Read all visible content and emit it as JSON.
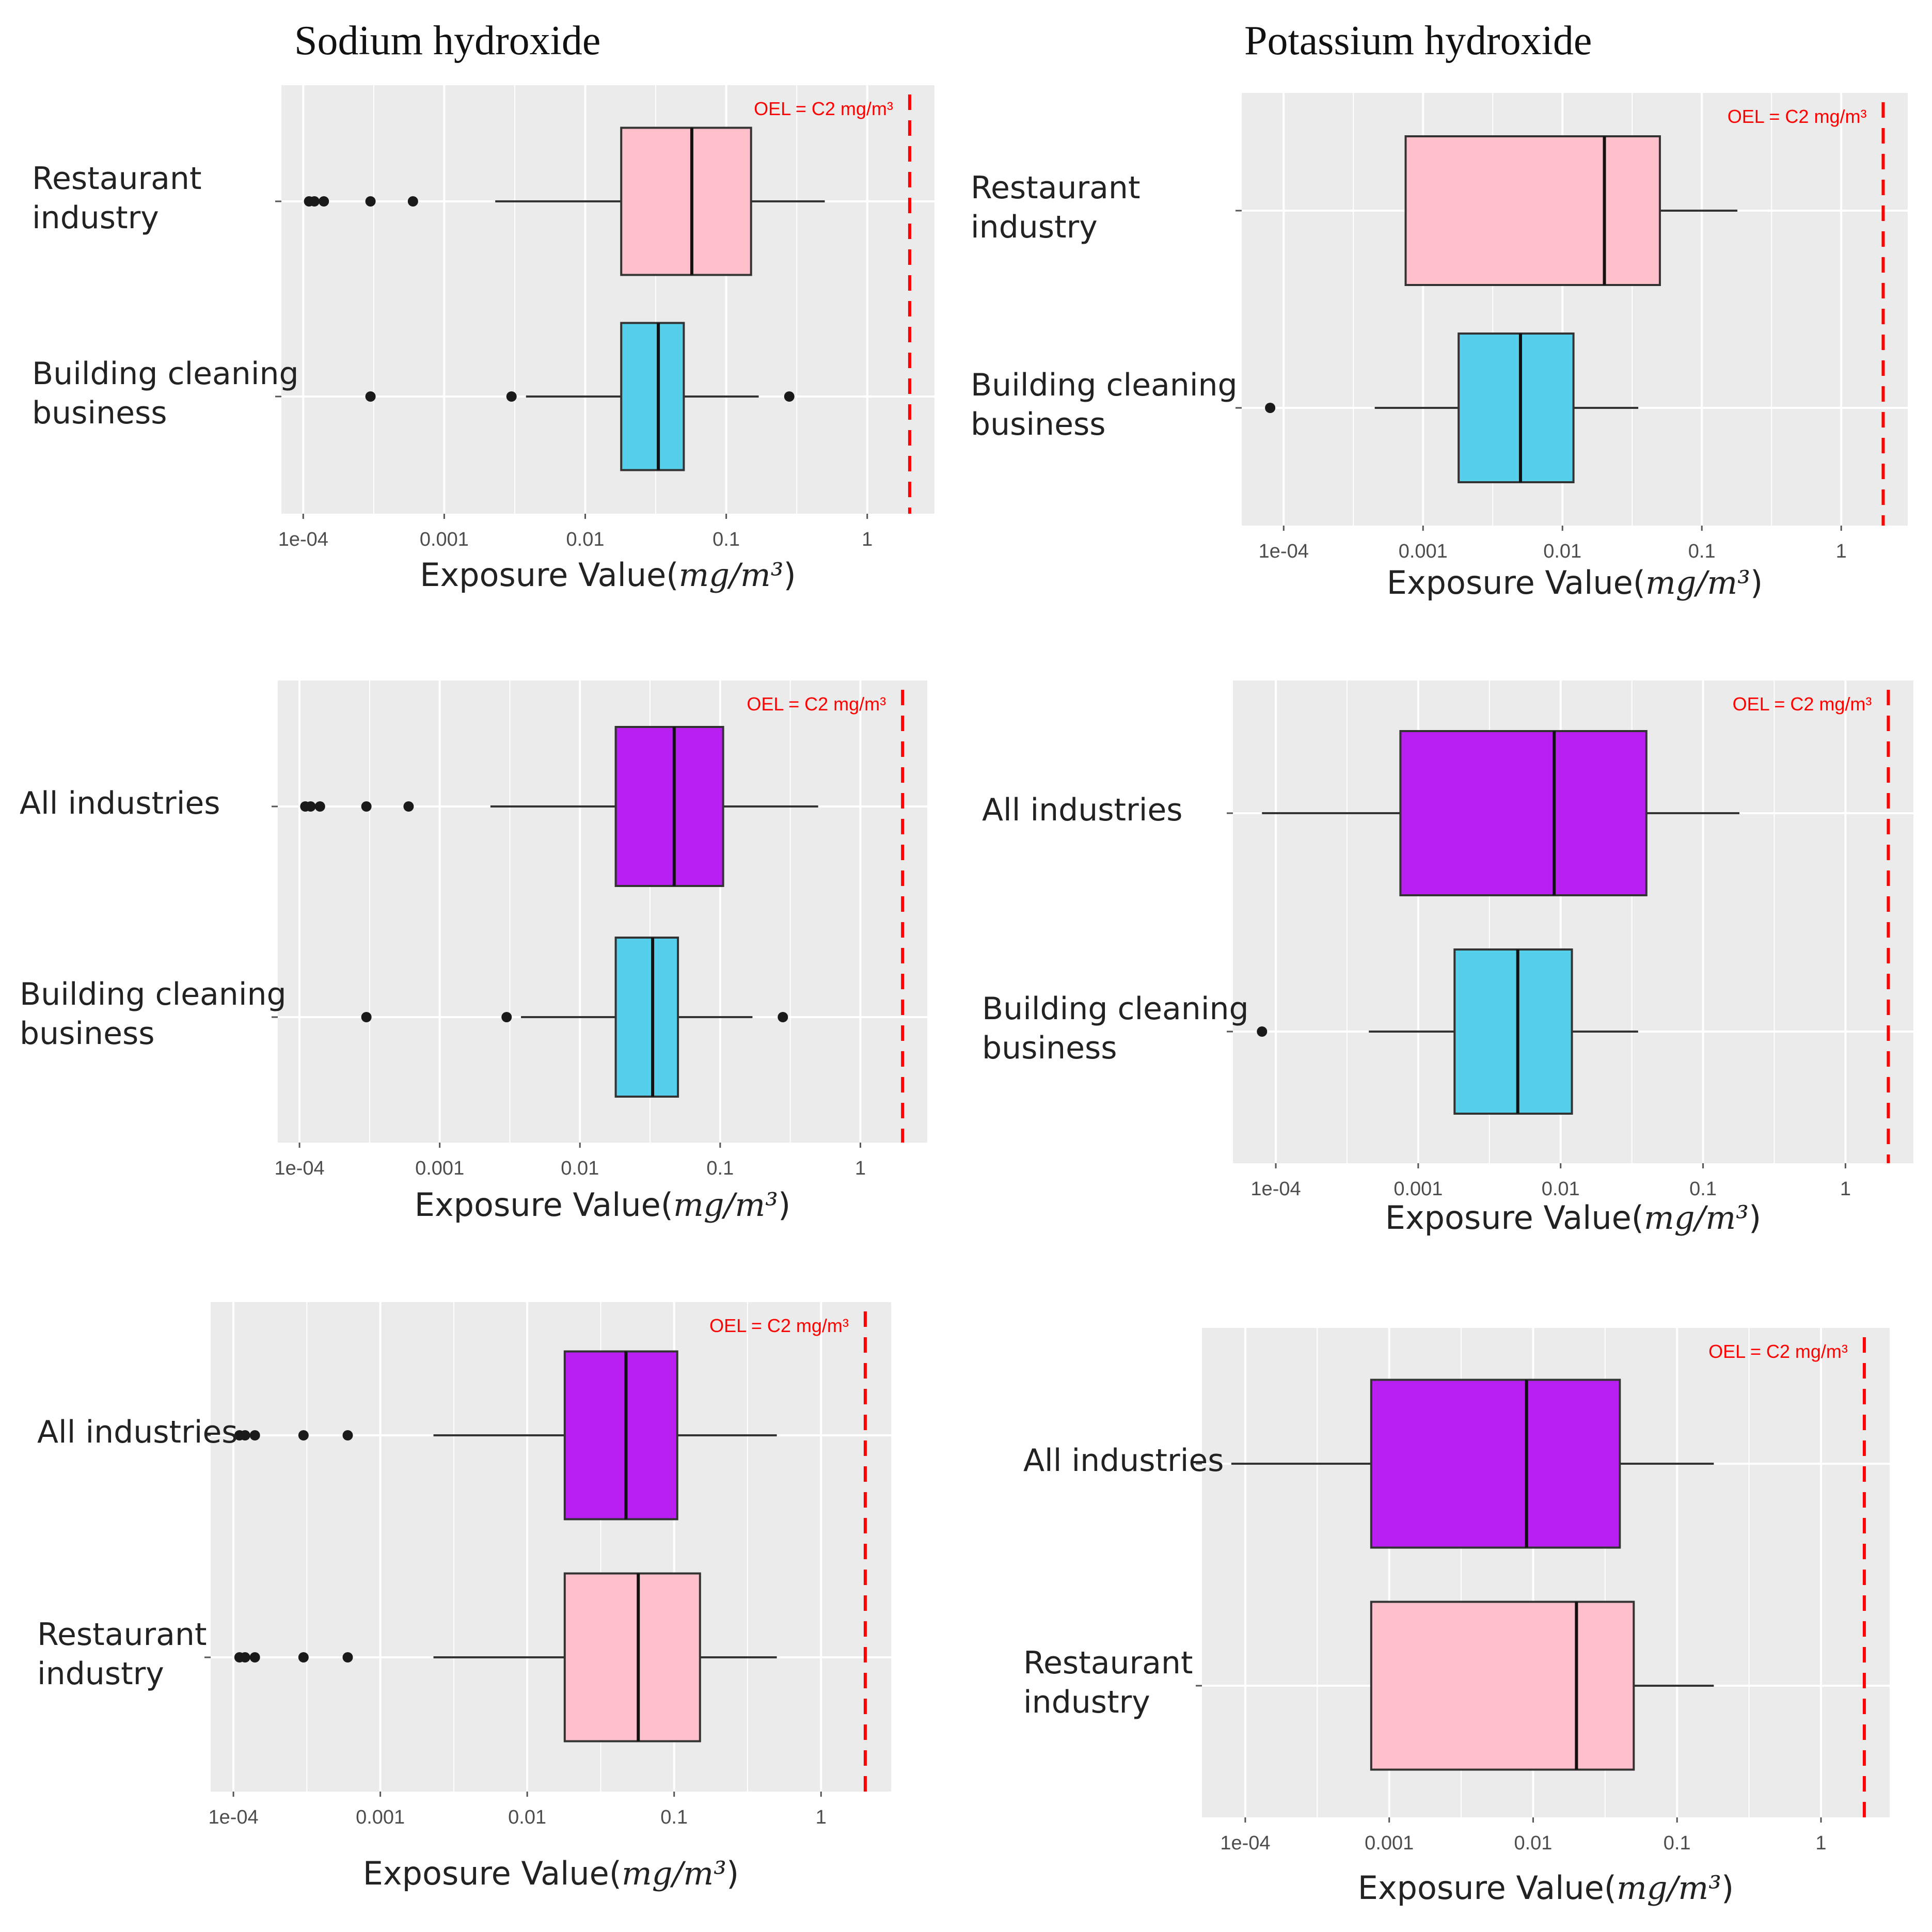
{
  "figure": {
    "column_titles": [
      "Sodium hydroxide",
      "Potassium hydroxide"
    ],
    "colors": {
      "panel_bg": "#ebebeb",
      "grid": "#ffffff",
      "box_outline": "#333333",
      "points": "#1a1a1a",
      "oel_line": "#ff0000",
      "Restaurant industry": "#ffc0cb",
      "Building cleaning business": "#56cfea",
      "All industries": "#b81ff0"
    }
  },
  "chart_data": [
    {
      "type": "boxplot",
      "title": "Sodium hydroxide",
      "xlabel": "Exposure Value(mg/m³)",
      "xscale": "log10",
      "xlim": [
        7e-05,
        3
      ],
      "xticks": [
        0.0001,
        0.001,
        0.01,
        0.1,
        1
      ],
      "xtick_labels": [
        "1e-04",
        "0.001",
        "0.01",
        "0.1",
        "1"
      ],
      "reference_line": {
        "value": 2,
        "label": "OEL = C2 mg/m³"
      },
      "groups": [
        {
          "label": "Restaurant industry",
          "color_key": "Restaurant industry",
          "whisker_low": 0.0023,
          "q1": 0.018,
          "median": 0.057,
          "q3": 0.15,
          "whisker_high": 0.5,
          "outliers": [
            0.00011,
            0.00012,
            0.00014,
            0.0003,
            0.0006
          ]
        },
        {
          "label": "Building cleaning business",
          "color_key": "Building cleaning business",
          "whisker_low": 0.0038,
          "q1": 0.018,
          "median": 0.033,
          "q3": 0.05,
          "whisker_high": 0.17,
          "outliers": [
            0.0003,
            0.003,
            0.28
          ]
        }
      ]
    },
    {
      "type": "boxplot",
      "title": "Potassium hydroxide",
      "xlabel": "Exposure Value(mg/m³)",
      "xscale": "log10",
      "xlim": [
        5e-05,
        3
      ],
      "xticks": [
        0.0001,
        0.001,
        0.01,
        0.1,
        1
      ],
      "xtick_labels": [
        "1e-04",
        "0.001",
        "0.01",
        "0.1",
        "1"
      ],
      "reference_line": {
        "value": 2,
        "label": "OEL = C2 mg/m³"
      },
      "groups": [
        {
          "label": "Restaurant industry",
          "color_key": "Restaurant industry",
          "whisker_low": 0.00075,
          "q1": 0.00075,
          "median": 0.02,
          "q3": 0.05,
          "whisker_high": 0.18,
          "outliers": []
        },
        {
          "label": "Building cleaning business",
          "color_key": "Building cleaning business",
          "whisker_low": 0.00045,
          "q1": 0.0018,
          "median": 0.005,
          "q3": 0.012,
          "whisker_high": 0.035,
          "outliers": [
            8e-05
          ]
        }
      ]
    },
    {
      "type": "boxplot",
      "title": "",
      "xlabel": "Exposure Value(mg/m³)",
      "xscale": "log10",
      "xlim": [
        7e-05,
        3
      ],
      "xticks": [
        0.0001,
        0.001,
        0.01,
        0.1,
        1
      ],
      "xtick_labels": [
        "1e-04",
        "0.001",
        "0.01",
        "0.1",
        "1"
      ],
      "reference_line": {
        "value": 2,
        "label": "OEL = C2 mg/m³"
      },
      "groups": [
        {
          "label": "All industries",
          "color_key": "All industries",
          "whisker_low": 0.0023,
          "q1": 0.018,
          "median": 0.047,
          "q3": 0.105,
          "whisker_high": 0.5,
          "outliers": [
            0.00011,
            0.00012,
            0.00014,
            0.0003,
            0.0006
          ]
        },
        {
          "label": "Building cleaning business",
          "color_key": "Building cleaning business",
          "whisker_low": 0.0038,
          "q1": 0.018,
          "median": 0.033,
          "q3": 0.05,
          "whisker_high": 0.17,
          "outliers": [
            0.0003,
            0.003,
            0.28
          ]
        }
      ]
    },
    {
      "type": "boxplot",
      "title": "",
      "xlabel": "Exposure Value(mg/m³)",
      "xscale": "log10",
      "xlim": [
        5e-05,
        3
      ],
      "xticks": [
        0.0001,
        0.001,
        0.01,
        0.1,
        1
      ],
      "xtick_labels": [
        "1e-04",
        "0.001",
        "0.01",
        "0.1",
        "1"
      ],
      "reference_line": {
        "value": 2,
        "label": "OEL = C2 mg/m³"
      },
      "groups": [
        {
          "label": "All industries",
          "color_key": "All industries",
          "whisker_low": 8e-05,
          "q1": 0.00075,
          "median": 0.009,
          "q3": 0.04,
          "whisker_high": 0.18,
          "outliers": []
        },
        {
          "label": "Building cleaning business",
          "color_key": "Building cleaning business",
          "whisker_low": 0.00045,
          "q1": 0.0018,
          "median": 0.005,
          "q3": 0.012,
          "whisker_high": 0.035,
          "outliers": [
            8e-05
          ]
        }
      ]
    },
    {
      "type": "boxplot",
      "title": "",
      "xlabel": "Exposure Value(mg/m³)",
      "xscale": "log10",
      "xlim": [
        7e-05,
        3
      ],
      "xticks": [
        0.0001,
        0.001,
        0.01,
        0.1,
        1
      ],
      "xtick_labels": [
        "1e-04",
        "0.001",
        "0.01",
        "0.1",
        "1"
      ],
      "reference_line": {
        "value": 2,
        "label": "OEL = C2 mg/m³"
      },
      "groups": [
        {
          "label": "All industries",
          "color_key": "All industries",
          "whisker_low": 0.0023,
          "q1": 0.018,
          "median": 0.047,
          "q3": 0.105,
          "whisker_high": 0.5,
          "outliers": [
            0.00011,
            0.00012,
            0.00014,
            0.0003,
            0.0006
          ]
        },
        {
          "label": "Restaurant industry",
          "color_key": "Restaurant industry",
          "whisker_low": 0.0023,
          "q1": 0.018,
          "median": 0.057,
          "q3": 0.15,
          "whisker_high": 0.5,
          "outliers": [
            0.00011,
            0.00012,
            0.00014,
            0.0003,
            0.0006
          ]
        }
      ]
    },
    {
      "type": "boxplot",
      "title": "",
      "xlabel": "Exposure Value(mg/m³)",
      "xscale": "log10",
      "xlim": [
        5e-05,
        3
      ],
      "xticks": [
        0.0001,
        0.001,
        0.01,
        0.1,
        1
      ],
      "xtick_labels": [
        "1e-04",
        "0.001",
        "0.01",
        "0.1",
        "1"
      ],
      "reference_line": {
        "value": 2,
        "label": "OEL = C2 mg/m³"
      },
      "groups": [
        {
          "label": "All industries",
          "color_key": "All industries",
          "whisker_low": 8e-05,
          "q1": 0.00075,
          "median": 0.009,
          "q3": 0.04,
          "whisker_high": 0.18,
          "outliers": []
        },
        {
          "label": "Restaurant industry",
          "color_key": "Restaurant industry",
          "whisker_low": 0.00075,
          "q1": 0.00075,
          "median": 0.02,
          "q3": 0.05,
          "whisker_high": 0.18,
          "outliers": []
        }
      ]
    }
  ]
}
